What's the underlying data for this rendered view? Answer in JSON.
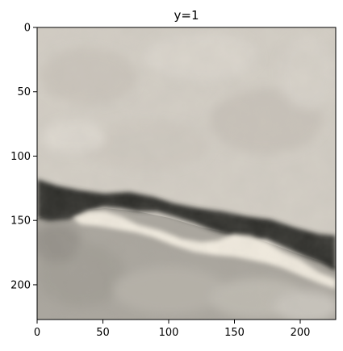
{
  "chart_data": {
    "type": "image",
    "title": "y=1",
    "xlabel": "",
    "ylabel": "",
    "xlim": [
      0,
      227
    ],
    "ylim": [
      227,
      0
    ],
    "x_ticks": [
      0,
      50,
      100,
      150,
      200
    ],
    "y_ticks": [
      0,
      50,
      100,
      150,
      200
    ],
    "grid": false,
    "image_content": "grayscale-beige stone/rock texture with a dark diagonal crack band and a light streak below it"
  }
}
